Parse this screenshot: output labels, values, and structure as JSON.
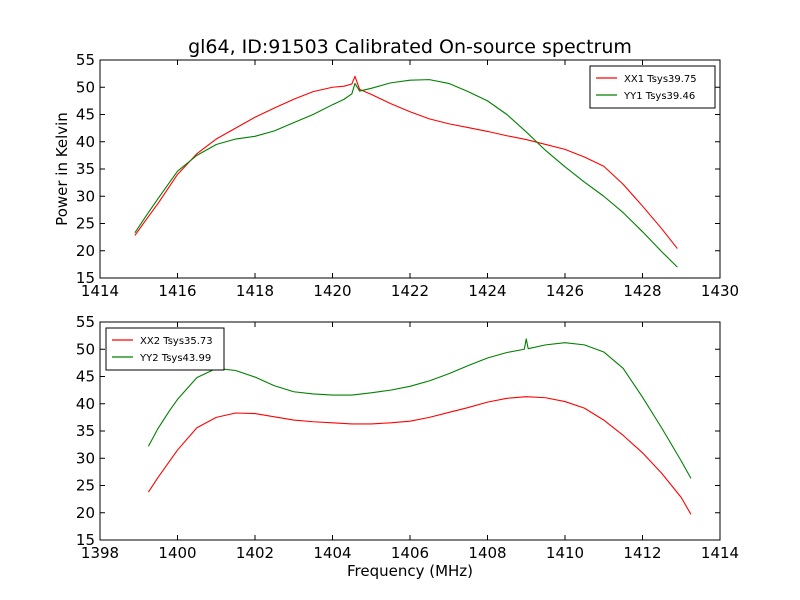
{
  "figure": {
    "title": "gl64, ID:91503 Calibrated On-source spectrum"
  },
  "chart_data": [
    {
      "type": "line",
      "title": "gl64, ID:91503 Calibrated On-source spectrum",
      "xlabel": "",
      "ylabel": "Power in Kelvin",
      "xlim": [
        1414,
        1430
      ],
      "ylim": [
        15,
        55
      ],
      "xticks": [
        1414,
        1416,
        1418,
        1420,
        1422,
        1424,
        1426,
        1428,
        1430
      ],
      "yticks": [
        15,
        20,
        25,
        30,
        35,
        40,
        45,
        50,
        55
      ],
      "grid": false,
      "legend_position": "top-right",
      "series": [
        {
          "name": "XX1 Tsys39.75",
          "color": "#ff0000",
          "x": [
            1414.9,
            1415.2,
            1415.5,
            1416.0,
            1416.5,
            1417.0,
            1417.5,
            1418.0,
            1418.5,
            1419.0,
            1419.5,
            1420.0,
            1420.3,
            1420.5,
            1420.58,
            1420.7,
            1421.0,
            1421.5,
            1422.0,
            1422.5,
            1423.0,
            1423.5,
            1424.0,
            1424.5,
            1425.0,
            1425.5,
            1426.0,
            1426.5,
            1427.0,
            1427.5,
            1428.0,
            1428.5,
            1428.9
          ],
          "values": [
            22.8,
            25.8,
            28.7,
            34.0,
            37.8,
            40.5,
            42.5,
            44.5,
            46.2,
            47.8,
            49.2,
            50.0,
            50.2,
            50.6,
            52.0,
            49.6,
            48.7,
            47.0,
            45.5,
            44.2,
            43.3,
            42.6,
            41.9,
            41.1,
            40.4,
            39.5,
            38.6,
            37.2,
            35.5,
            32.2,
            28.2,
            24.0,
            20.4
          ]
        },
        {
          "name": "YY1 Tsys39.46",
          "color": "#008000",
          "x": [
            1414.9,
            1415.2,
            1415.5,
            1416.0,
            1416.5,
            1417.0,
            1417.5,
            1418.0,
            1418.5,
            1419.0,
            1419.5,
            1420.0,
            1420.3,
            1420.5,
            1420.58,
            1420.7,
            1421.0,
            1421.5,
            1422.0,
            1422.5,
            1423.0,
            1423.5,
            1424.0,
            1424.5,
            1425.0,
            1425.5,
            1426.0,
            1426.5,
            1427.0,
            1427.5,
            1428.0,
            1428.5,
            1428.9
          ],
          "values": [
            23.3,
            26.5,
            29.6,
            34.6,
            37.5,
            39.5,
            40.5,
            41.0,
            42.0,
            43.5,
            45.0,
            46.8,
            47.8,
            48.8,
            50.7,
            49.3,
            49.8,
            50.8,
            51.3,
            51.4,
            50.7,
            49.2,
            47.5,
            45.0,
            41.8,
            38.4,
            35.4,
            32.6,
            30.0,
            27.0,
            23.5,
            19.8,
            17.0
          ]
        }
      ]
    },
    {
      "type": "line",
      "title": "",
      "xlabel": "Frequency (MHz)",
      "ylabel": "",
      "xlim": [
        1398,
        1414
      ],
      "ylim": [
        15,
        55
      ],
      "xticks": [
        1398,
        1400,
        1402,
        1404,
        1406,
        1408,
        1410,
        1412,
        1414
      ],
      "yticks": [
        15,
        20,
        25,
        30,
        35,
        40,
        45,
        50,
        55
      ],
      "grid": false,
      "legend_position": "top-left",
      "series": [
        {
          "name": "XX2 Tsys35.73",
          "color": "#ff0000",
          "x": [
            1399.25,
            1399.5,
            1399.8,
            1400.0,
            1400.5,
            1401.0,
            1401.5,
            1402.0,
            1402.5,
            1403.0,
            1403.5,
            1404.0,
            1404.5,
            1405.0,
            1405.5,
            1406.0,
            1406.5,
            1407.0,
            1407.5,
            1408.0,
            1408.5,
            1409.0,
            1409.5,
            1410.0,
            1410.5,
            1411.0,
            1411.5,
            1412.0,
            1412.5,
            1413.0,
            1413.25
          ],
          "values": [
            23.8,
            26.5,
            29.5,
            31.5,
            35.6,
            37.5,
            38.3,
            38.2,
            37.6,
            37.0,
            36.7,
            36.5,
            36.3,
            36.3,
            36.5,
            36.8,
            37.5,
            38.4,
            39.3,
            40.3,
            41.0,
            41.3,
            41.1,
            40.4,
            39.2,
            37.0,
            34.2,
            31.0,
            27.2,
            22.8,
            19.7
          ]
        },
        {
          "name": "YY2 Tsys43.99",
          "color": "#008000",
          "x": [
            1399.25,
            1399.5,
            1399.8,
            1400.0,
            1400.5,
            1401.0,
            1401.5,
            1402.0,
            1402.5,
            1403.0,
            1403.5,
            1404.0,
            1404.5,
            1405.0,
            1405.5,
            1406.0,
            1406.5,
            1407.0,
            1407.5,
            1408.0,
            1408.5,
            1408.95,
            1409.0,
            1409.05,
            1409.5,
            1410.0,
            1410.5,
            1411.0,
            1411.5,
            1412.0,
            1412.5,
            1413.0,
            1413.25
          ],
          "values": [
            32.2,
            35.5,
            38.8,
            40.8,
            44.8,
            46.5,
            46.1,
            44.9,
            43.3,
            42.2,
            41.8,
            41.6,
            41.6,
            42.0,
            42.5,
            43.2,
            44.2,
            45.5,
            47.0,
            48.4,
            49.4,
            50.0,
            51.9,
            50.1,
            50.8,
            51.2,
            50.8,
            49.5,
            46.5,
            41.2,
            35.5,
            29.5,
            26.3
          ]
        }
      ]
    }
  ]
}
